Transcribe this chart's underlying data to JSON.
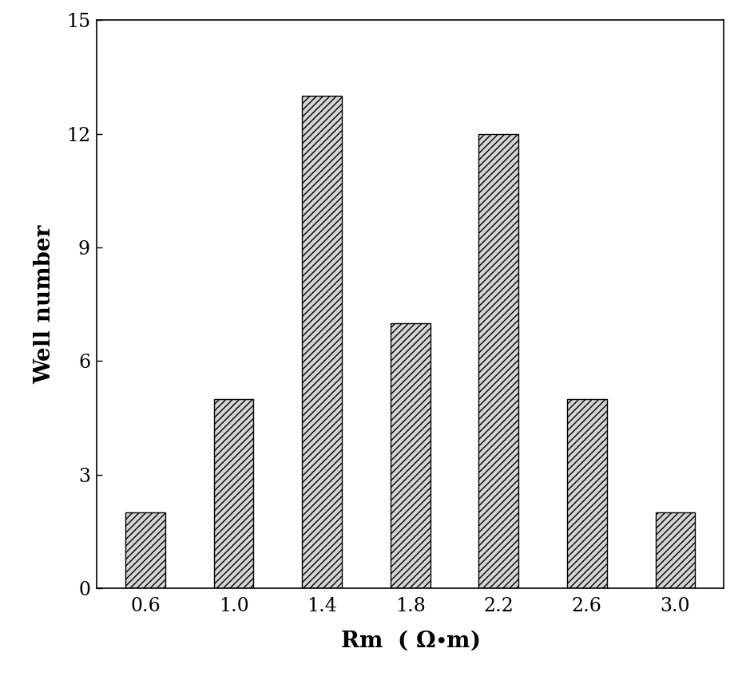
{
  "categories": [
    "0.6",
    "1.0",
    "1.4",
    "1.8",
    "2.2",
    "2.6",
    "3.0"
  ],
  "values": [
    2,
    5,
    13,
    7,
    12,
    5,
    2
  ],
  "xlabel": "Rm （ Ω•m）",
  "ylabel": "Well number",
  "ylim": [
    0,
    15
  ],
  "yticks": [
    0,
    3,
    6,
    9,
    12,
    15
  ],
  "bar_color": "#d4d4d4",
  "hatch": "////",
  "bar_width": 0.45,
  "background_color": "#ffffff",
  "xlabel_fontsize": 20,
  "ylabel_fontsize": 20,
  "tick_fontsize": 17
}
